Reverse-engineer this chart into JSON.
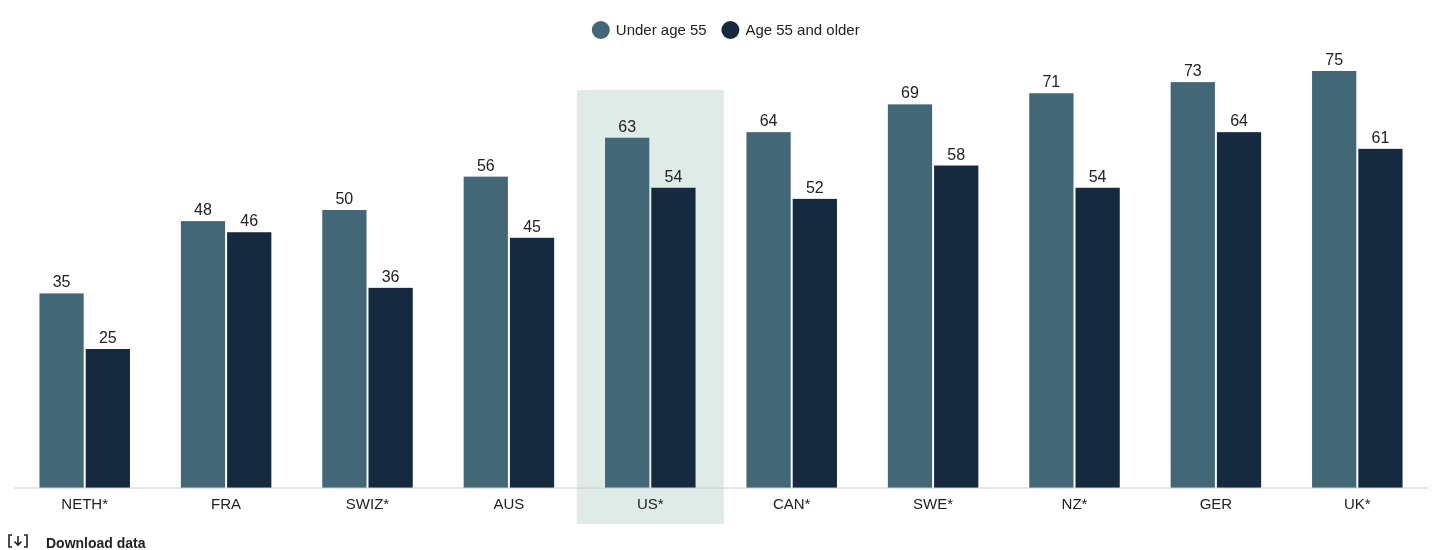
{
  "chart_data": {
    "type": "bar",
    "categories": [
      "NETH*",
      "FRA",
      "SWIZ*",
      "AUS",
      "US*",
      "CAN*",
      "SWE*",
      "NZ*",
      "GER",
      "UK*"
    ],
    "series": [
      {
        "name": "Under age 55",
        "color": "#426878",
        "values": [
          35,
          48,
          50,
          56,
          63,
          64,
          69,
          71,
          73,
          75
        ]
      },
      {
        "name": "Age 55 and older",
        "color": "#15293f",
        "values": [
          25,
          46,
          36,
          45,
          54,
          52,
          58,
          54,
          64,
          61
        ]
      }
    ],
    "data_labels": true,
    "legend": "top",
    "grid": false,
    "bands": [
      {
        "axis": "x",
        "from": "US*",
        "to": "US*",
        "color": "#dfebe6"
      }
    ],
    "annotations": [
      "Download data"
    ]
  }
}
